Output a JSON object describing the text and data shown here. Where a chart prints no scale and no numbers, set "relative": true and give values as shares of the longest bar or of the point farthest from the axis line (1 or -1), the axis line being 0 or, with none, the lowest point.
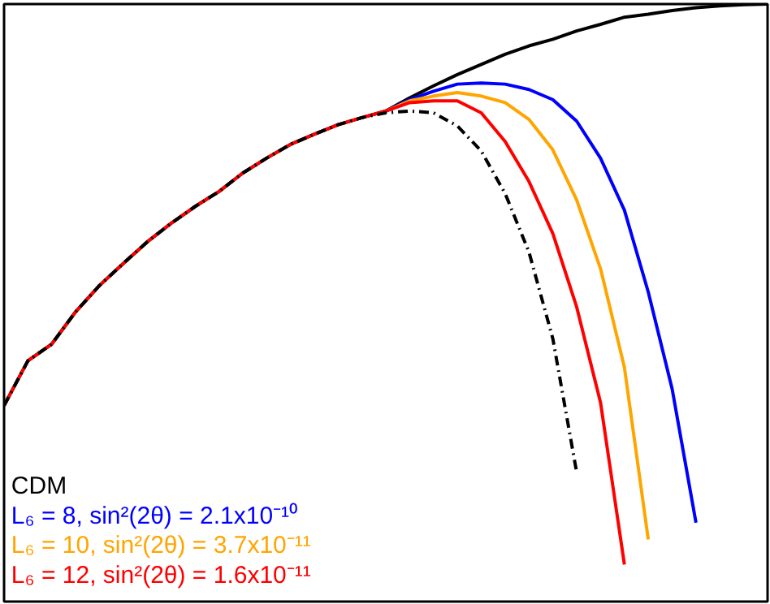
{
  "chart_data": {
    "type": "line",
    "relative": true,
    "legend": "bottom left",
    "grid": false,
    "categories": [
      null,
      null,
      null,
      null,
      null,
      null,
      null,
      null,
      null,
      null,
      null,
      null,
      null,
      null,
      null,
      null,
      null,
      null,
      null,
      null,
      null,
      null,
      null,
      null,
      null,
      null,
      null,
      null,
      null,
      null,
      null,
      null,
      null
    ],
    "series": [
      {
        "name": "CDM",
        "color": "#000000",
        "values": [
          0.328,
          0.403,
          0.431,
          0.485,
          0.529,
          0.566,
          0.602,
          0.633,
          0.661,
          0.686,
          0.717,
          0.742,
          0.765,
          0.782,
          0.798,
          0.81,
          0.821,
          0.843,
          0.863,
          0.882,
          0.899,
          0.916,
          0.93,
          0.941,
          0.955,
          0.966,
          0.978,
          0.983,
          0.989,
          0.994,
          0.997,
          0.999,
          1.0
        ]
      },
      {
        "name": "L₆ =     8, sin²(2θ) = 2.1x10⁻¹⁰",
        "color": "#0000ff",
        "values": [
          null,
          null,
          null,
          null,
          null,
          null,
          null,
          null,
          null,
          null,
          null,
          null,
          null,
          null,
          null,
          null,
          0.821,
          0.84,
          0.854,
          0.866,
          0.868,
          0.866,
          0.857,
          0.84,
          0.804,
          0.742,
          0.655,
          0.518,
          0.356,
          0.132,
          null,
          null,
          null
        ]
      },
      {
        "name": "L₆ =   10, sin²(2θ) = 3.7x10⁻¹¹",
        "color": "#ffa500",
        "values": [
          null,
          null,
          null,
          null,
          null,
          null,
          null,
          null,
          null,
          null,
          null,
          null,
          null,
          null,
          null,
          null,
          0.821,
          0.838,
          0.846,
          0.852,
          0.846,
          0.835,
          0.807,
          0.756,
          0.672,
          0.557,
          0.392,
          0.104,
          null,
          null,
          null,
          null,
          null
        ]
      },
      {
        "name": "L₆ =   12, sin²(2θ) = 1.6x10⁻¹¹",
        "color": "#ff0000",
        "values": [
          0.328,
          0.403,
          0.431,
          0.485,
          0.529,
          0.566,
          0.602,
          0.633,
          0.661,
          0.686,
          0.717,
          0.742,
          0.765,
          0.782,
          0.798,
          0.81,
          0.821,
          0.835,
          0.838,
          0.838,
          0.818,
          0.77,
          0.703,
          0.616,
          0.493,
          0.333,
          0.062,
          null,
          null,
          null,
          null,
          null,
          null
        ]
      },
      {
        "color": "#000000",
        "line_style": "dashed",
        "values": [
          0.328,
          0.403,
          0.431,
          0.485,
          0.529,
          0.566,
          0.602,
          0.633,
          0.661,
          0.686,
          0.717,
          0.742,
          0.765,
          0.782,
          0.798,
          0.81,
          0.818,
          0.821,
          0.818,
          0.796,
          0.754,
          0.683,
          0.585,
          0.44,
          0.216,
          null,
          null,
          null,
          null,
          null,
          null,
          null,
          null
        ]
      }
    ]
  }
}
